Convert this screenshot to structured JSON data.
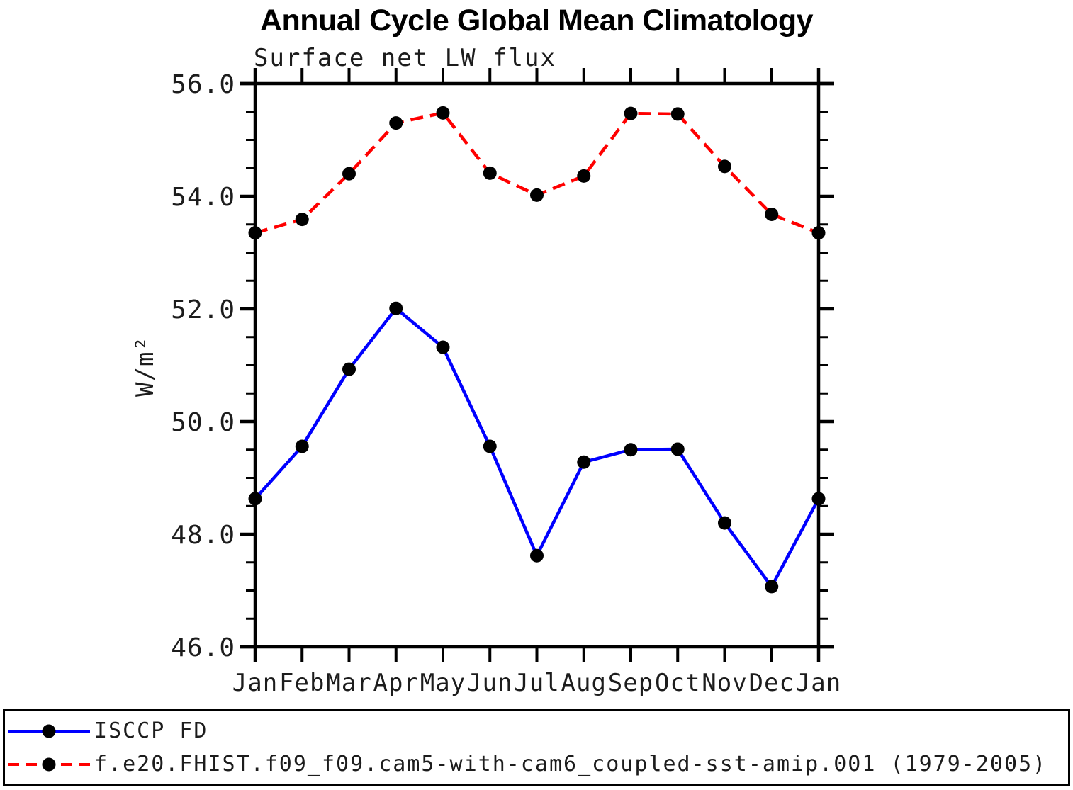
{
  "title": "Annual Cycle Global Mean Climatology",
  "subtitle": "Surface net LW flux",
  "chart_data": {
    "type": "line",
    "categories": [
      "Jan",
      "Feb",
      "Mar",
      "Apr",
      "May",
      "Jun",
      "Jul",
      "Aug",
      "Sep",
      "Oct",
      "Nov",
      "Dec",
      "Jan"
    ],
    "series": [
      {
        "name": "ISCCP FD",
        "color": "#0000ff",
        "line_style": "solid",
        "marker": "filled-circle",
        "marker_color": "#000000",
        "values": [
          48.63,
          49.56,
          50.93,
          52.01,
          51.32,
          49.56,
          47.62,
          49.28,
          49.5,
          49.51,
          48.2,
          47.07,
          48.63
        ]
      },
      {
        "name": "f.e20.FHIST.f09_f09.cam5-with-cam6_coupled-sst-amip.001 (1979-2005)",
        "color": "#ff0000",
        "line_style": "dashed",
        "marker": "filled-circle",
        "marker_color": "#000000",
        "values": [
          53.35,
          53.59,
          54.4,
          55.3,
          55.48,
          54.41,
          54.02,
          54.36,
          55.47,
          55.46,
          54.53,
          53.68,
          53.35
        ]
      }
    ],
    "xlabel": "",
    "ylabel": "W/m²",
    "ylim": [
      46.0,
      56.0
    ],
    "ytick_major": [
      46,
      48,
      50,
      52,
      54,
      56
    ],
    "ytick_labels": [
      "46.0",
      "48.0",
      "50.0",
      "52.0",
      "54.0",
      "56.0"
    ],
    "ytick_minor_step": 0.5,
    "grid": false,
    "axis_color": "#000000",
    "legend_position": "bottom-box"
  }
}
